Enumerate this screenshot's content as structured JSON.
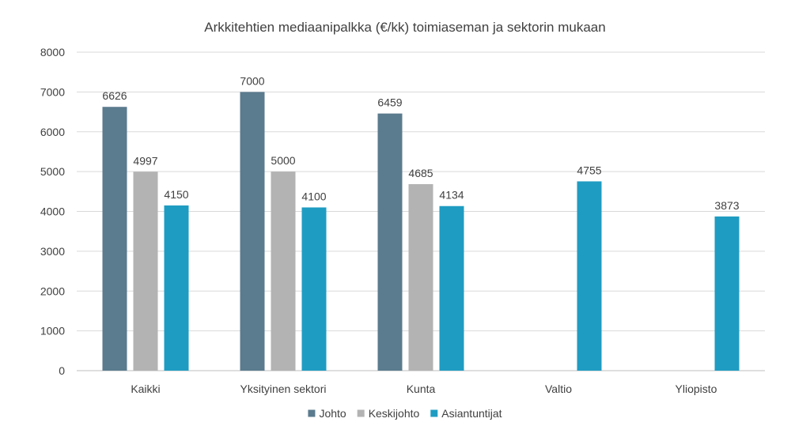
{
  "chart_data": {
    "type": "bar",
    "title": "Arkkitehtien mediaanipalkka (€/kk) toimiaseman ja sektorin mukaan",
    "xlabel": "",
    "ylabel": "",
    "categories": [
      "Kaikki",
      "Yksityinen sektori",
      "Kunta",
      "Valtio",
      "Yliopisto"
    ],
    "series": [
      {
        "name": "Johto",
        "color": "#5b7b8e",
        "values": [
          6626,
          7000,
          6459,
          null,
          null
        ]
      },
      {
        "name": "Keskijohto",
        "color": "#b3b3b3",
        "values": [
          4997,
          5000,
          4685,
          null,
          null
        ]
      },
      {
        "name": "Asiantuntijat",
        "color": "#1f9cc2",
        "values": [
          4150,
          4100,
          4134,
          4755,
          3873
        ]
      }
    ],
    "ylim": [
      0,
      8000
    ],
    "yticks": [
      0,
      1000,
      2000,
      3000,
      4000,
      5000,
      6000,
      7000,
      8000
    ],
    "grid": true,
    "legend_position": "bottom",
    "data_labels": true
  }
}
